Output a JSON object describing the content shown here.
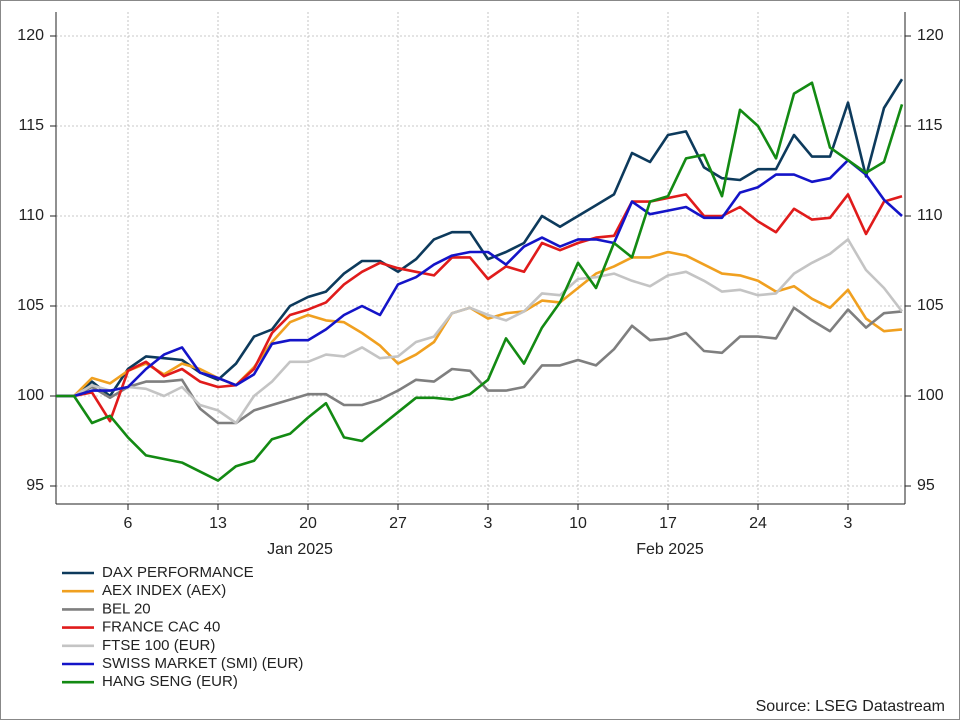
{
  "chart_data": {
    "type": "line",
    "source": "Source: LSEG Datastream",
    "x_period_labels": [
      "Jan 2025",
      "Feb 2025"
    ],
    "x": [
      "2024-12-31",
      "2025-01-01",
      "2025-01-02",
      "2025-01-03",
      "2025-01-06",
      "2025-01-07",
      "2025-01-08",
      "2025-01-09",
      "2025-01-10",
      "2025-01-13",
      "2025-01-14",
      "2025-01-15",
      "2025-01-16",
      "2025-01-17",
      "2025-01-20",
      "2025-01-21",
      "2025-01-22",
      "2025-01-23",
      "2025-01-24",
      "2025-01-27",
      "2025-01-28",
      "2025-01-29",
      "2025-01-30",
      "2025-01-31",
      "2025-02-03",
      "2025-02-04",
      "2025-02-05",
      "2025-02-06",
      "2025-02-07",
      "2025-02-10",
      "2025-02-11",
      "2025-02-12",
      "2025-02-13",
      "2025-02-14",
      "2025-02-17",
      "2025-02-18",
      "2025-02-19",
      "2025-02-20",
      "2025-02-21",
      "2025-02-24",
      "2025-02-25",
      "2025-02-26",
      "2025-02-27",
      "2025-02-28",
      "2025-03-03",
      "2025-03-04",
      "2025-03-05",
      "2025-03-06"
    ],
    "xlim": [
      "2024-12-31",
      "2025-03-06"
    ],
    "xticks": [
      {
        "value": "2025-01-06",
        "label": "6"
      },
      {
        "value": "2025-01-13",
        "label": "13"
      },
      {
        "value": "2025-01-20",
        "label": "20"
      },
      {
        "value": "2025-01-27",
        "label": "27"
      },
      {
        "value": "2025-02-03",
        "label": "3"
      },
      {
        "value": "2025-02-10",
        "label": "10"
      },
      {
        "value": "2025-02-17",
        "label": "17"
      },
      {
        "value": "2025-02-24",
        "label": "24"
      },
      {
        "value": "2025-03-03",
        "label": "3"
      }
    ],
    "ylim": [
      94,
      120
    ],
    "yticks": [
      95,
      100,
      105,
      110,
      115,
      120
    ],
    "grid": true,
    "legend": "bottom-left",
    "series": [
      {
        "name": "DAX PERFORMANCE",
        "color": "#0d3a5c",
        "values": [
          100,
          100,
          100.8,
          100.0,
          101.5,
          102.2,
          102.1,
          102.0,
          101.3,
          100.9,
          101.8,
          103.3,
          103.7,
          105.0,
          105.5,
          105.8,
          106.8,
          107.5,
          107.5,
          106.9,
          107.6,
          108.7,
          109.1,
          109.1,
          107.6,
          108.0,
          108.5,
          110.0,
          109.4,
          110.0,
          110.6,
          111.2,
          113.5,
          113.0,
          114.5,
          114.7,
          112.7,
          112.1,
          112.0,
          112.6,
          112.6,
          114.5,
          113.3,
          113.3,
          116.3,
          112.2,
          116.0,
          117.6
        ]
      },
      {
        "name": "AEX INDEX (AEX)",
        "color": "#f0a020",
        "values": [
          100,
          100,
          101.0,
          100.7,
          101.4,
          101.8,
          101.2,
          101.8,
          101.5,
          101.0,
          100.6,
          101.6,
          103.0,
          104.1,
          104.5,
          104.2,
          104.1,
          103.5,
          102.8,
          101.8,
          102.3,
          103.0,
          104.6,
          104.9,
          104.3,
          104.6,
          104.7,
          105.3,
          105.2,
          106.0,
          106.8,
          107.2,
          107.7,
          107.7,
          108.0,
          107.8,
          107.3,
          106.8,
          106.7,
          106.4,
          105.8,
          106.1,
          105.4,
          104.9,
          105.9,
          104.3,
          103.6,
          103.7
        ]
      },
      {
        "name": "BEL 20",
        "color": "#7f7f7f",
        "values": [
          100,
          100,
          100.5,
          99.9,
          100.5,
          100.8,
          100.8,
          100.9,
          99.3,
          98.5,
          98.5,
          99.2,
          99.5,
          99.8,
          100.1,
          100.1,
          99.5,
          99.5,
          99.8,
          100.3,
          100.9,
          100.8,
          101.5,
          101.4,
          100.3,
          100.3,
          100.5,
          101.7,
          101.7,
          102.0,
          101.7,
          102.6,
          103.9,
          103.1,
          103.2,
          103.5,
          102.5,
          102.4,
          103.3,
          103.3,
          103.2,
          104.9,
          104.2,
          103.6,
          104.8,
          103.8,
          104.6,
          104.7
        ]
      },
      {
        "name": "FRANCE CAC 40",
        "color": "#e01b1b",
        "values": [
          100,
          100,
          100.2,
          98.6,
          101.4,
          101.9,
          101.1,
          101.5,
          100.8,
          100.5,
          100.6,
          101.5,
          103.5,
          104.5,
          104.8,
          105.2,
          106.2,
          106.9,
          107.4,
          107.1,
          106.9,
          106.7,
          107.7,
          107.7,
          106.5,
          107.2,
          106.9,
          108.5,
          108.1,
          108.5,
          108.8,
          108.9,
          110.8,
          110.8,
          111.0,
          111.2,
          110.0,
          110.0,
          110.5,
          109.7,
          109.1,
          110.4,
          109.8,
          109.9,
          111.2,
          109.0,
          110.8,
          111.1
        ]
      },
      {
        "name": "FTSE 100 (EUR)",
        "color": "#c4c4c4",
        "values": [
          100,
          100,
          100.6,
          100.3,
          100.5,
          100.4,
          100.0,
          100.5,
          99.5,
          99.2,
          98.5,
          100.0,
          100.8,
          101.9,
          101.9,
          102.3,
          102.2,
          102.7,
          102.1,
          102.2,
          103.0,
          103.3,
          104.6,
          104.9,
          104.5,
          104.2,
          104.7,
          105.7,
          105.6,
          106.5,
          106.6,
          106.8,
          106.4,
          106.1,
          106.7,
          106.9,
          106.4,
          105.8,
          105.9,
          105.6,
          105.7,
          106.8,
          107.4,
          107.9,
          108.7,
          107.0,
          106.0,
          104.7
        ]
      },
      {
        "name": "SWISS MARKET (SMI) (EUR)",
        "color": "#1414c8",
        "values": [
          100,
          100,
          100.3,
          100.3,
          100.5,
          101.5,
          102.3,
          102.7,
          101.3,
          101.0,
          100.6,
          101.2,
          102.9,
          103.1,
          103.1,
          103.7,
          104.5,
          105.0,
          104.5,
          106.2,
          106.6,
          107.3,
          107.8,
          108.0,
          108.0,
          107.3,
          108.3,
          108.8,
          108.3,
          108.7,
          108.7,
          108.5,
          110.8,
          110.1,
          110.3,
          110.5,
          109.9,
          109.9,
          111.3,
          111.6,
          112.3,
          112.3,
          111.9,
          112.1,
          113.1,
          112.3,
          110.9,
          110.0
        ]
      },
      {
        "name": "HANG SENG (EUR)",
        "color": "#138a13",
        "values": [
          100,
          100,
          98.5,
          98.9,
          97.7,
          96.7,
          96.5,
          96.3,
          95.8,
          95.3,
          96.1,
          96.4,
          97.6,
          97.9,
          98.8,
          99.6,
          97.7,
          97.5,
          98.3,
          99.1,
          99.9,
          99.9,
          99.8,
          100.1,
          100.9,
          103.2,
          101.8,
          103.8,
          105.2,
          107.4,
          106.0,
          108.5,
          107.7,
          110.8,
          111.1,
          113.2,
          113.4,
          111.1,
          115.9,
          115.0,
          113.2,
          116.8,
          117.4,
          113.8,
          113.1,
          112.4,
          113.0,
          116.2
        ]
      }
    ]
  }
}
